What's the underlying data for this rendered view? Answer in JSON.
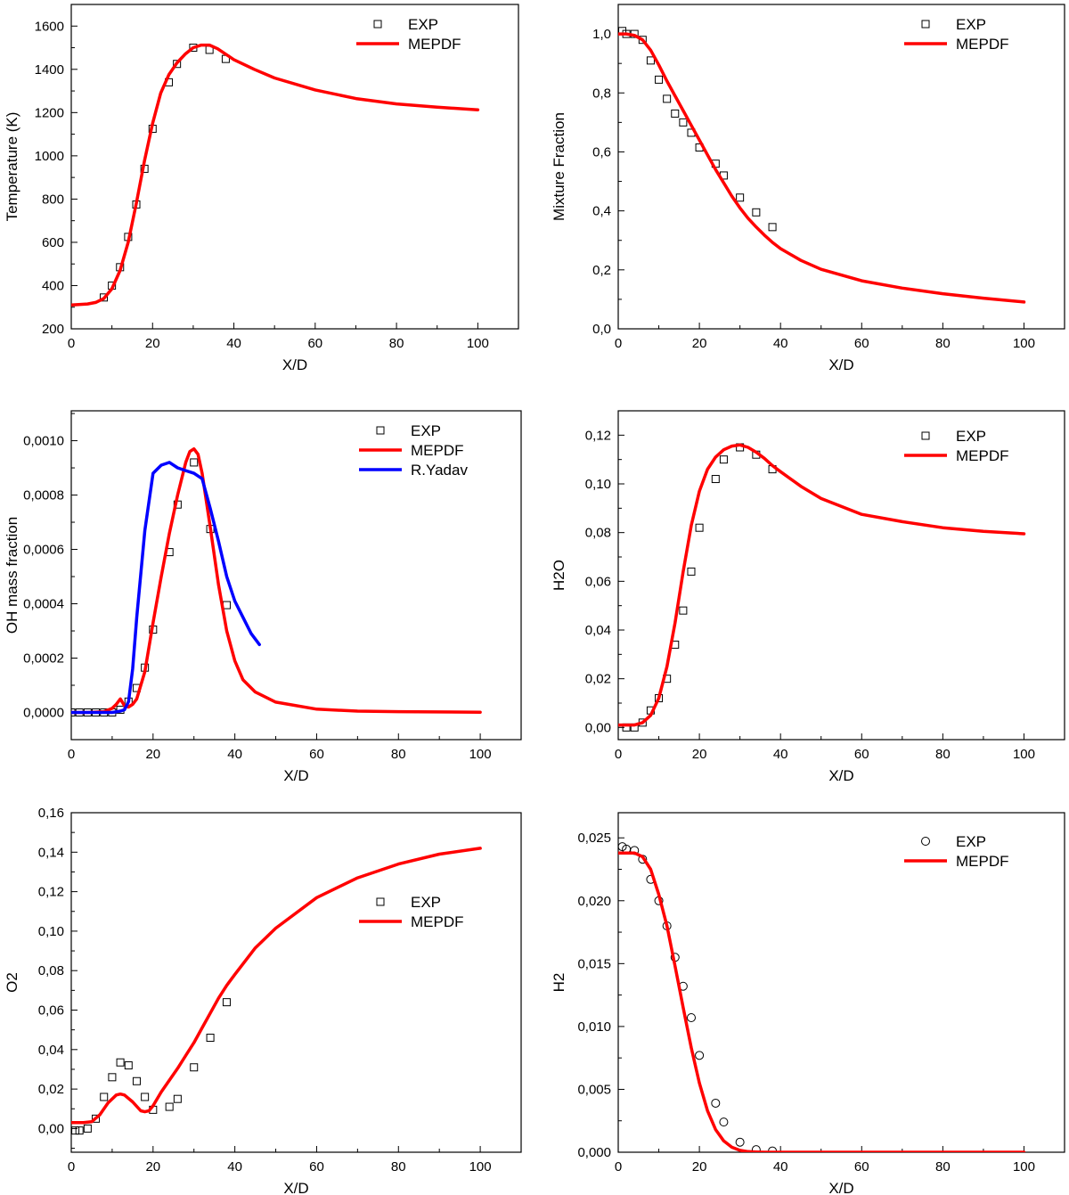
{
  "chart_data": [
    {
      "type": "line",
      "xlabel": "X/D",
      "ylabel": "Temperature (K)",
      "xlim": [
        0,
        110
      ],
      "ylim": [
        200,
        1700
      ],
      "xticks": [
        0,
        20,
        40,
        60,
        80,
        100
      ],
      "xtick_labels": [
        "0",
        "20",
        "40",
        "60",
        "80",
        "100"
      ],
      "yticks": [
        200,
        400,
        600,
        800,
        1000,
        1200,
        1400,
        1600
      ],
      "ytick_labels": [
        "200",
        "400",
        "600",
        "800",
        "1000",
        "1200",
        "1400",
        "1600"
      ],
      "legend": "top-right",
      "series": [
        {
          "name": "EXP",
          "style": "square",
          "color": "#000000",
          "x": [
            8,
            10,
            12,
            14,
            16,
            18,
            20,
            24,
            26,
            30,
            34,
            38
          ],
          "y": [
            345,
            400,
            485,
            625,
            775,
            940,
            1125,
            1340,
            1425,
            1500,
            1490,
            1448
          ]
        },
        {
          "name": "MEPDF",
          "style": "line",
          "color": "#ff0000",
          "x": [
            0,
            4,
            6,
            8,
            10,
            12,
            14,
            16,
            18,
            20,
            22,
            24,
            26,
            28,
            30,
            32,
            34,
            36,
            38,
            40,
            45,
            50,
            60,
            70,
            80,
            90,
            100
          ],
          "y": [
            310,
            315,
            322,
            340,
            385,
            470,
            600,
            780,
            975,
            1150,
            1290,
            1375,
            1430,
            1470,
            1500,
            1512,
            1512,
            1495,
            1470,
            1445,
            1400,
            1360,
            1305,
            1265,
            1240,
            1225,
            1213
          ]
        }
      ]
    },
    {
      "type": "line",
      "xlabel": "X/D",
      "ylabel": "Mixture Fraction",
      "xlim": [
        0,
        110
      ],
      "ylim": [
        0,
        1.1
      ],
      "xticks": [
        0,
        20,
        40,
        60,
        80,
        100
      ],
      "xtick_labels": [
        "0",
        "20",
        "40",
        "60",
        "80",
        "100"
      ],
      "yticks": [
        0,
        0.2,
        0.4,
        0.6,
        0.8,
        1.0
      ],
      "ytick_labels": [
        "0,0",
        "0,2",
        "0,4",
        "0,6",
        "0,8",
        "1,0"
      ],
      "legend": "top-right",
      "series": [
        {
          "name": "EXP",
          "style": "square",
          "color": "#000000",
          "x": [
            1,
            2,
            4,
            6,
            8,
            10,
            12,
            14,
            16,
            18,
            20,
            24,
            26,
            30,
            34,
            38
          ],
          "y": [
            1.01,
            1.0,
            1.0,
            0.98,
            0.91,
            0.845,
            0.78,
            0.73,
            0.7,
            0.665,
            0.615,
            0.56,
            0.52,
            0.445,
            0.395,
            0.345
          ]
        },
        {
          "name": "MEPDF",
          "style": "line",
          "color": "#ff0000",
          "x": [
            0,
            2,
            4,
            6,
            8,
            10,
            12,
            14,
            16,
            18,
            20,
            22,
            24,
            26,
            28,
            30,
            32,
            34,
            36,
            38,
            40,
            45,
            50,
            60,
            70,
            80,
            90,
            100
          ],
          "y": [
            1.0,
            1.0,
            0.995,
            0.98,
            0.945,
            0.895,
            0.84,
            0.79,
            0.74,
            0.69,
            0.64,
            0.59,
            0.54,
            0.495,
            0.45,
            0.41,
            0.375,
            0.345,
            0.318,
            0.293,
            0.272,
            0.232,
            0.202,
            0.163,
            0.138,
            0.119,
            0.104,
            0.091
          ]
        }
      ]
    },
    {
      "type": "line",
      "xlabel": "X/D",
      "ylabel": "OH mass fraction",
      "xlim": [
        0,
        110
      ],
      "ylim": [
        -0.0001,
        0.00111
      ],
      "xticks": [
        0,
        20,
        40,
        60,
        80,
        100
      ],
      "xtick_labels": [
        "0",
        "20",
        "40",
        "60",
        "80",
        "100"
      ],
      "yticks": [
        0,
        0.0002,
        0.0004,
        0.0006,
        0.0008,
        0.001
      ],
      "ytick_labels": [
        "0,0000",
        "0,0002",
        "0,0004",
        "0,0006",
        "0,0008",
        "0,0010"
      ],
      "legend": "top-right",
      "series": [
        {
          "name": "EXP",
          "style": "square",
          "color": "#000000",
          "x": [
            0,
            2,
            4,
            6,
            8,
            10,
            12,
            14,
            16,
            18,
            20,
            24,
            26,
            30,
            34,
            38
          ],
          "y": [
            0,
            0,
            0,
            0,
            0,
            0,
            1e-05,
            4e-05,
            9e-05,
            0.000165,
            0.000305,
            0.00059,
            0.000765,
            0.00092,
            0.000675,
            0.000395
          ]
        },
        {
          "name": "MEPDF",
          "style": "line",
          "color": "#ff0000",
          "x": [
            0,
            4,
            8,
            10,
            11,
            12,
            13,
            14,
            15,
            16,
            18,
            20,
            22,
            24,
            26,
            28,
            29,
            30,
            31,
            32,
            34,
            36,
            38,
            40,
            42,
            45,
            50,
            60,
            70,
            80,
            100
          ],
          "y": [
            0,
            0,
            3e-06,
            1.5e-05,
            3e-05,
            5e-05,
            2.5e-05,
            2e-05,
            3e-05,
            5e-05,
            0.00015,
            0.00033,
            0.0005,
            0.00066,
            0.0008,
            0.00092,
            0.00096,
            0.00097,
            0.00095,
            0.00088,
            0.00068,
            0.00047,
            0.0003,
            0.00019,
            0.00012,
            7.5e-05,
            3.8e-05,
            1.2e-05,
            5e-06,
            3e-06,
            1e-06
          ]
        },
        {
          "name": "R.Yadav",
          "style": "line",
          "color": "#0000ff",
          "x": [
            0,
            10,
            12,
            13,
            14,
            15,
            16,
            18,
            20,
            22,
            24,
            26,
            28,
            30,
            32,
            34,
            36,
            38,
            40,
            42,
            44,
            46
          ],
          "y": [
            0,
            0,
            5e-06,
            1e-05,
            4e-05,
            0.00016,
            0.00035,
            0.00067,
            0.00088,
            0.00091,
            0.00092,
            0.0009,
            0.00089,
            0.00088,
            0.00086,
            0.00075,
            0.00063,
            0.0005,
            0.00041,
            0.00035,
            0.00029,
            0.00025
          ]
        }
      ]
    },
    {
      "type": "line",
      "xlabel": "X/D",
      "ylabel": "H2O",
      "xlim": [
        0,
        110
      ],
      "ylim": [
        -0.005,
        0.13
      ],
      "xticks": [
        0,
        20,
        40,
        60,
        80,
        100
      ],
      "xtick_labels": [
        "0",
        "20",
        "40",
        "60",
        "80",
        "100"
      ],
      "yticks": [
        0,
        0.02,
        0.04,
        0.06,
        0.08,
        0.1,
        0.12
      ],
      "ytick_labels": [
        "0,00",
        "0,02",
        "0,04",
        "0,06",
        "0,08",
        "0,10",
        "0,12"
      ],
      "legend": "top-right",
      "series": [
        {
          "name": "EXP",
          "style": "square",
          "color": "#000000",
          "x": [
            2,
            4,
            6,
            8,
            10,
            12,
            14,
            16,
            18,
            20,
            24,
            26,
            30,
            34,
            38
          ],
          "y": [
            0,
            0,
            0.002,
            0.007,
            0.012,
            0.02,
            0.034,
            0.048,
            0.064,
            0.082,
            0.102,
            0.11,
            0.115,
            0.112,
            0.106
          ]
        },
        {
          "name": "MEPDF",
          "style": "line",
          "color": "#ff0000",
          "x": [
            0,
            4,
            6,
            8,
            10,
            12,
            14,
            16,
            18,
            20,
            22,
            24,
            26,
            28,
            30,
            32,
            34,
            36,
            38,
            40,
            45,
            50,
            60,
            70,
            80,
            90,
            100
          ],
          "y": [
            0.001,
            0.001,
            0.002,
            0.005,
            0.012,
            0.025,
            0.043,
            0.064,
            0.083,
            0.097,
            0.106,
            0.111,
            0.114,
            0.1155,
            0.116,
            0.115,
            0.113,
            0.1105,
            0.1075,
            0.105,
            0.099,
            0.094,
            0.0875,
            0.0845,
            0.082,
            0.0805,
            0.0795
          ]
        }
      ]
    },
    {
      "type": "line",
      "xlabel": "X/D",
      "ylabel": "O2",
      "xlim": [
        0,
        110
      ],
      "ylim": [
        -0.012,
        0.16
      ],
      "xticks": [
        0,
        20,
        40,
        60,
        80,
        100
      ],
      "xtick_labels": [
        "0",
        "20",
        "40",
        "60",
        "80",
        "100"
      ],
      "yticks": [
        0,
        0.02,
        0.04,
        0.06,
        0.08,
        0.1,
        0.12,
        0.14,
        0.16
      ],
      "ytick_labels": [
        "0,00",
        "0,02",
        "0,04",
        "0,06",
        "0,08",
        "0,10",
        "0,12",
        "0,14",
        "0,16"
      ],
      "legend": "center-right",
      "series": [
        {
          "name": "EXP",
          "style": "square",
          "color": "#000000",
          "x": [
            1,
            2,
            4,
            6,
            8,
            10,
            12,
            14,
            16,
            18,
            20,
            24,
            26,
            30,
            34,
            38
          ],
          "y": [
            -0.001,
            -0.001,
            0,
            0.005,
            0.016,
            0.026,
            0.0335,
            0.032,
            0.024,
            0.016,
            0.0095,
            0.011,
            0.015,
            0.031,
            0.046,
            0.064
          ]
        },
        {
          "name": "MEPDF",
          "style": "line",
          "color": "#ff0000",
          "x": [
            0,
            3,
            5,
            7,
            9,
            11,
            12,
            13,
            15,
            17,
            18,
            19,
            20,
            22,
            24,
            26,
            28,
            30,
            32,
            34,
            36,
            38,
            40,
            45,
            50,
            60,
            70,
            80,
            90,
            100
          ],
          "y": [
            0.003,
            0.003,
            0.0035,
            0.007,
            0.013,
            0.017,
            0.0175,
            0.017,
            0.0135,
            0.009,
            0.0085,
            0.009,
            0.0115,
            0.0185,
            0.0245,
            0.0305,
            0.037,
            0.0435,
            0.051,
            0.0585,
            0.066,
            0.0725,
            0.078,
            0.0915,
            0.1015,
            0.117,
            0.127,
            0.134,
            0.139,
            0.142
          ]
        }
      ]
    },
    {
      "type": "line",
      "xlabel": "X/D",
      "ylabel": "H2",
      "xlim": [
        0,
        110
      ],
      "ylim": [
        0,
        0.027
      ],
      "xticks": [
        0,
        20,
        40,
        60,
        80,
        100
      ],
      "xtick_labels": [
        "0",
        "20",
        "40",
        "60",
        "80",
        "100"
      ],
      "yticks": [
        0,
        0.005,
        0.01,
        0.015,
        0.02,
        0.025
      ],
      "ytick_labels": [
        "0,000",
        "0,005",
        "0,010",
        "0,015",
        "0,020",
        "0,025"
      ],
      "legend": "top-right",
      "series": [
        {
          "name": "EXP",
          "style": "circle",
          "color": "#000000",
          "x": [
            1,
            2,
            4,
            6,
            8,
            10,
            12,
            14,
            16,
            18,
            20,
            24,
            26,
            30,
            34,
            38
          ],
          "y": [
            0.0243,
            0.0241,
            0.024,
            0.0233,
            0.0217,
            0.02,
            0.018,
            0.0155,
            0.0132,
            0.0107,
            0.0077,
            0.0039,
            0.0024,
            0.0008,
            0.0002,
            0.0001
          ]
        },
        {
          "name": "MEPDF",
          "style": "line",
          "color": "#ff0000",
          "x": [
            0,
            4,
            6,
            8,
            10,
            12,
            14,
            16,
            18,
            20,
            22,
            24,
            26,
            28,
            30,
            32,
            34,
            36,
            38,
            40,
            50,
            60,
            80,
            100
          ],
          "y": [
            0.0238,
            0.0238,
            0.0235,
            0.0225,
            0.0205,
            0.018,
            0.0148,
            0.0115,
            0.0083,
            0.0055,
            0.0033,
            0.0018,
            0.0009,
            0.0004,
            0.00015,
            5e-05,
            2e-05,
            0,
            0,
            0,
            0,
            0,
            0,
            0
          ]
        }
      ]
    }
  ]
}
